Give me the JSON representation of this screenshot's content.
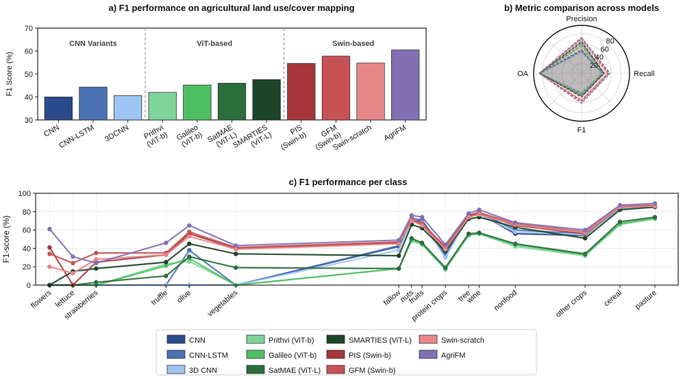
{
  "models": [
    {
      "key": "cnn",
      "name": "CNN",
      "color": "#2b4a8b",
      "dash": false
    },
    {
      "key": "cnnlstm",
      "name": "CNN-LSTM",
      "color": "#4a72b4",
      "dash": false
    },
    {
      "key": "3dcnn",
      "name": "3D CNN",
      "color": "#9ec5f2",
      "dash": false
    },
    {
      "key": "prithvi",
      "name": "Prithvi (ViT-b)",
      "color": "#7fd49a",
      "dash": false
    },
    {
      "key": "galileo",
      "name": "Galileo (ViT-b)",
      "color": "#4fbf63",
      "dash": false
    },
    {
      "key": "satmae",
      "name": "SatMAE (ViT-L)",
      "color": "#2b6e3c",
      "dash": false
    },
    {
      "key": "smarties",
      "name": "SMARTIES (ViT-L)",
      "color": "#1c4427",
      "dash": false
    },
    {
      "key": "pis",
      "name": "PIS (Swin-b)",
      "color": "#a5353a",
      "dash": false
    },
    {
      "key": "gfm",
      "name": "GFM (Swin-b)",
      "color": "#c65256",
      "dash": false
    },
    {
      "key": "swinscratch",
      "name": "Swin-scratch",
      "color": "#e68688",
      "dash": false
    },
    {
      "key": "agrifm",
      "name": "AgriFM",
      "color": "#8270b3",
      "dash": false
    }
  ],
  "chart_data": [
    {
      "type": "bar",
      "title": "a) F1 performance on agricultural land use/cover mapping",
      "ylabel": "F1 Score (%)",
      "ylim": [
        30,
        70
      ],
      "yticks": [
        30,
        40,
        50,
        60,
        70
      ],
      "categories": [
        "CNN",
        "CNN-LSTM",
        "3DCNN",
        "Prithvi\n(ViT-b)",
        "Galileo\n(ViT-b)",
        "SatMAE\n(ViT-L)",
        "SMARTIES\n(ViT-L)",
        "PIS\n(Swin-b)",
        "GFM\n(Swin-b)",
        "Swin-scratch",
        "AgriFM"
      ],
      "values": [
        40.0,
        44.3,
        40.6,
        42.0,
        45.2,
        46.0,
        47.6,
        54.6,
        57.8,
        54.8,
        60.5
      ],
      "colors": [
        "#2b4a8b",
        "#4a72b4",
        "#9ec5f2",
        "#7fd49a",
        "#4fbf63",
        "#2b6e3c",
        "#1c4427",
        "#a5353a",
        "#c65256",
        "#e68688",
        "#8270b3"
      ],
      "groups": [
        {
          "label": "CNN Variants",
          "start": 0,
          "end": 2
        },
        {
          "label": "ViT-based",
          "start": 3,
          "end": 6
        },
        {
          "label": "Swin-based",
          "start": 7,
          "end": 10
        }
      ],
      "grid": false
    },
    {
      "type": "radar",
      "title": "b) Metric comparison across models",
      "axes": [
        "Precision",
        "Recall",
        "F1",
        "OA"
      ],
      "rlim": [
        0,
        80
      ],
      "rticks": [
        20,
        40,
        60,
        80
      ],
      "series": [
        {
          "name": "CNN",
          "values": [
            48,
            41,
            40,
            84
          ]
        },
        {
          "name": "CNN-LSTM",
          "values": [
            45,
            44,
            44,
            84
          ]
        },
        {
          "name": "3D CNN",
          "values": [
            42,
            41,
            41,
            83
          ]
        },
        {
          "name": "Prithvi (ViT-b)",
          "values": [
            55,
            41,
            42,
            84
          ]
        },
        {
          "name": "Galileo (ViT-b)",
          "values": [
            58,
            44,
            45,
            84
          ]
        },
        {
          "name": "SatMAE (ViT-L)",
          "values": [
            62,
            45,
            46,
            85
          ]
        },
        {
          "name": "SMARTIES (ViT-L)",
          "values": [
            65,
            46,
            48,
            85
          ]
        },
        {
          "name": "PIS (Swin-b)",
          "values": [
            70,
            53,
            55,
            86
          ]
        },
        {
          "name": "GFM (Swin-b)",
          "values": [
            72,
            56,
            58,
            86
          ]
        },
        {
          "name": "Swin-scratch",
          "values": [
            71,
            54,
            55,
            86
          ]
        },
        {
          "name": "AgriFM",
          "values": [
            73,
            58,
            61,
            87
          ]
        }
      ]
    },
    {
      "type": "line",
      "title": "c) F1 performance per class",
      "ylabel": "F1-score (%)",
      "ylim": [
        0,
        100
      ],
      "yticks": [
        0,
        20,
        40,
        60,
        80,
        100
      ],
      "categories": [
        "flowers",
        "lettuce",
        "strawberries",
        "truffle",
        "olive",
        "vegetables",
        "fallow",
        "nuts",
        "fruits",
        "protein crops",
        "tree",
        "wine",
        "nonfood",
        "other crops",
        "cereal",
        "pasture"
      ],
      "x_index": [
        0,
        1,
        2,
        5,
        6,
        8,
        15,
        15.55,
        16,
        17,
        18,
        18.45,
        20,
        23,
        24.5,
        26
      ],
      "xlim": [
        -0.6,
        27
      ],
      "series": [
        {
          "name": "CNN",
          "values": [
            0,
            0,
            0,
            0,
            0,
            0,
            42,
            70,
            70,
            32,
            76,
            78,
            56,
            54,
            84,
            86
          ]
        },
        {
          "name": "CNN-LSTM",
          "values": [
            0,
            0,
            0,
            0,
            38,
            0,
            43,
            73,
            71,
            34,
            76,
            79,
            60,
            56,
            84,
            87
          ]
        },
        {
          "name": "3D CNN",
          "values": [
            0,
            0,
            0,
            0,
            0,
            0,
            38,
            70,
            68,
            30,
            74,
            77,
            58,
            55,
            83,
            86
          ]
        },
        {
          "name": "Prithvi (ViT-b)",
          "values": [
            0,
            0,
            0,
            23,
            26,
            0,
            18,
            48,
            44,
            17,
            54,
            56,
            42,
            32,
            66,
            72
          ]
        },
        {
          "name": "Galileo (ViT-b)",
          "values": [
            0,
            0,
            0,
            21,
            29,
            0,
            18,
            50,
            45,
            18,
            55,
            56,
            44,
            33,
            67,
            73
          ]
        },
        {
          "name": "SatMAE (ViT-L)",
          "values": [
            0,
            0,
            3,
            10,
            31,
            19,
            18,
            51,
            46,
            19,
            56,
            57,
            45,
            34,
            69,
            74
          ]
        },
        {
          "name": "SMARTIES (ViT-L)",
          "values": [
            0,
            15,
            18,
            25,
            45,
            34,
            32,
            66,
            62,
            37,
            72,
            74,
            63,
            51,
            82,
            85
          ]
        },
        {
          "name": "PIS (Swin-b)",
          "values": [
            41,
            0,
            25,
            33,
            56,
            40,
            46,
            71,
            66,
            40,
            75,
            78,
            65,
            56,
            85,
            86
          ]
        },
        {
          "name": "GFM (Swin-b)",
          "values": [
            34,
            24,
            35,
            35,
            58,
            41,
            47,
            72,
            67,
            42,
            76,
            79,
            67,
            58,
            86,
            87
          ]
        },
        {
          "name": "Swin-scratch",
          "values": [
            20,
            13,
            28,
            33,
            53,
            39,
            45,
            70,
            65,
            39,
            74,
            77,
            66,
            57,
            85,
            86
          ]
        },
        {
          "name": "AgriFM",
          "values": [
            61,
            31,
            24,
            46,
            65,
            43,
            49,
            76,
            74,
            44,
            78,
            82,
            68,
            60,
            87,
            89
          ]
        }
      ],
      "legend": "bottom"
    }
  ]
}
